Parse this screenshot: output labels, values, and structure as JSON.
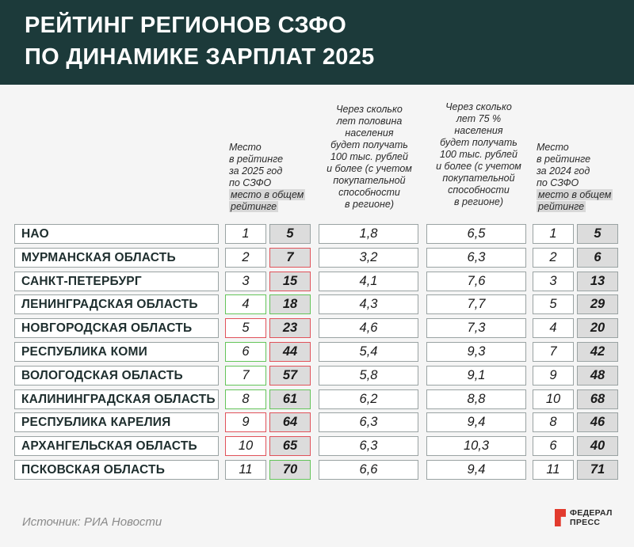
{
  "title": {
    "line1": "РЕЙТИНГ РЕГИОНОВ СЗФО",
    "line2": "ПО ДИНАМИКЕ ЗАРПЛАТ 2025"
  },
  "headers": {
    "place2025": {
      "lines": [
        "Место",
        "в рейтинге",
        "за 2025 год",
        "по СЗФО"
      ],
      "highlight": [
        "место в общем",
        "рейтинге"
      ]
    },
    "half": [
      "Через сколько",
      "лет половина",
      "населения",
      "будет получать",
      "100 тыс. рублей",
      "и более (с учетом",
      "покупательной",
      "способности",
      "в регионе)"
    ],
    "p75": [
      "Через сколько",
      "лет 75 %",
      "населения",
      "будет получать",
      "100 тыс. рублей",
      "и более (с учетом",
      "покупательной",
      "способности",
      "в регионе)"
    ],
    "place2024": {
      "lines": [
        "Место",
        "в рейтинге",
        "за 2024 год",
        "по СЗФО"
      ],
      "highlight": [
        "место в общем",
        "рейтинге"
      ]
    }
  },
  "rows": [
    {
      "name": "НАО",
      "p25": "1",
      "r25": "5",
      "half": "1,8",
      "p75": "6,5",
      "p24": "1",
      "r24": "5",
      "p25c": "",
      "r25c": ""
    },
    {
      "name": "МУРМАНСКАЯ ОБЛАСТЬ",
      "p25": "2",
      "r25": "7",
      "half": "3,2",
      "p75": "6,3",
      "p24": "2",
      "r24": "6",
      "p25c": "",
      "r25c": "r"
    },
    {
      "name": "САНКТ-ПЕТЕРБУРГ",
      "p25": "3",
      "r25": "15",
      "half": "4,1",
      "p75": "7,6",
      "p24": "3",
      "r24": "13",
      "p25c": "",
      "r25c": "r"
    },
    {
      "name": "ЛЕНИНГРАДСКАЯ ОБЛАСТЬ",
      "p25": "4",
      "r25": "18",
      "half": "4,3",
      "p75": "7,7",
      "p24": "5",
      "r24": "29",
      "p25c": "g",
      "r25c": "g"
    },
    {
      "name": "НОВГОРОДСКАЯ ОБЛАСТЬ",
      "p25": "5",
      "r25": "23",
      "half": "4,6",
      "p75": "7,3",
      "p24": "4",
      "r24": "20",
      "p25c": "r",
      "r25c": "r"
    },
    {
      "name": "РЕСПУБЛИКА КОМИ",
      "p25": "6",
      "r25": "44",
      "half": "5,4",
      "p75": "9,3",
      "p24": "7",
      "r24": "42",
      "p25c": "g",
      "r25c": "r"
    },
    {
      "name": "ВОЛОГОДСКАЯ ОБЛАСТЬ",
      "p25": "7",
      "r25": "57",
      "half": "5,8",
      "p75": "9,1",
      "p24": "9",
      "r24": "48",
      "p25c": "g",
      "r25c": "r"
    },
    {
      "name": "КАЛИНИНГРАДСКАЯ ОБЛАСТЬ",
      "p25": "8",
      "r25": "61",
      "half": "6,2",
      "p75": "8,8",
      "p24": "10",
      "r24": "68",
      "p25c": "g",
      "r25c": "g"
    },
    {
      "name": "РЕСПУБЛИКА КАРЕЛИЯ",
      "p25": "9",
      "r25": "64",
      "half": "6,3",
      "p75": "9,4",
      "p24": "8",
      "r24": "46",
      "p25c": "r",
      "r25c": "r"
    },
    {
      "name": "АРХАНГЕЛЬСКАЯ ОБЛАСТЬ",
      "p25": "10",
      "r25": "65",
      "half": "6,3",
      "p75": "10,3",
      "p24": "6",
      "r24": "40",
      "p25c": "r",
      "r25c": "r"
    },
    {
      "name": "ПСКОВСКАЯ ОБЛАСТЬ",
      "p25": "11",
      "r25": "70",
      "half": "6,6",
      "p75": "9,4",
      "p24": "11",
      "r24": "71",
      "p25c": "",
      "r25c": "g"
    }
  ],
  "source": "Источник: РИА Новости",
  "logo": {
    "line1": "ФЕДЕРАЛ",
    "line2": "ПРЕСС"
  },
  "colors": {
    "header_bg": "#1c3a3a",
    "improved": "#64c45a",
    "worsened": "#e0525a",
    "logo_red": "#e23b2e"
  }
}
